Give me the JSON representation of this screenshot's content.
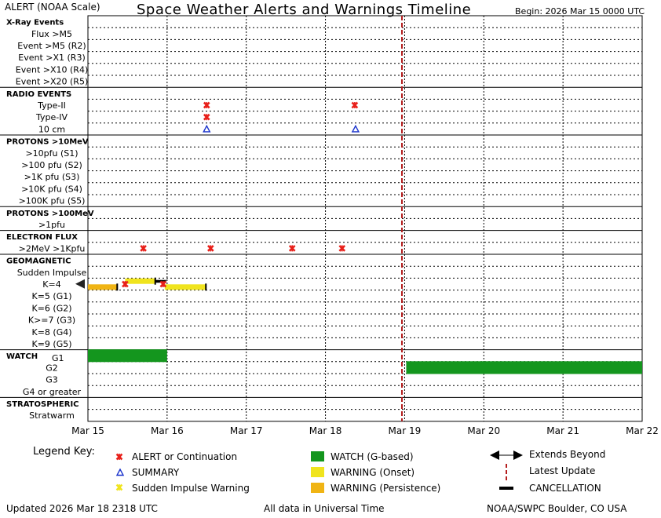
{
  "header": {
    "scale_label": "ALERT (NOAA Scale)",
    "title": "Space Weather Alerts and Warnings Timeline",
    "begin": "Begin: 2026 Mar 15 0000 UTC"
  },
  "footer": {
    "updated": "Updated 2026 Mar 18 2318 UTC",
    "note": "All data in Universal Time",
    "source": "NOAA/SWPC Boulder, CO USA"
  },
  "legend": {
    "title": "Legend Key:",
    "alert": "ALERT or Continuation",
    "summary": "SUMMARY",
    "sudden": "Sudden Impulse Warning",
    "watch": "WATCH (G-based)",
    "warning_onset": "WARNING (Onset)",
    "warning_persist": "WARNING (Persistence)",
    "extends": "Extends Beyond",
    "latest": "Latest Update",
    "cancel": "CANCELLATION"
  },
  "colors": {
    "alert": "#e8201a",
    "summary": "#1a33cc",
    "watch": "#14961e",
    "warning_onset": "#f0e41e",
    "warning_persist": "#f0b414",
    "latest_update": "#b41e1e",
    "grid": "#000000"
  },
  "chart_data": {
    "type": "timeline",
    "x_tick_labels": [
      "Mar 15",
      "Mar 16",
      "Mar 17",
      "Mar 18",
      "Mar 19",
      "Mar 20",
      "Mar 21",
      "Mar 22"
    ],
    "x_range_days": [
      0,
      7
    ],
    "latest_update_day": 3.966,
    "rows": [
      {
        "label": "X-Ray Events",
        "section": true
      },
      {
        "label": "Flux >M5"
      },
      {
        "label": "Event >M5 (R2)"
      },
      {
        "label": "Event >X1 (R3)"
      },
      {
        "label": "Event >X10 (R4)"
      },
      {
        "label": "Event >X20 (R5)"
      },
      {
        "label": "RADIO EVENTS",
        "section": true
      },
      {
        "label": "Type-II"
      },
      {
        "label": "Type-IV"
      },
      {
        "label": "10 cm"
      },
      {
        "label": "PROTONS >10MeV",
        "section": true
      },
      {
        "label": ">10pfu (S1)"
      },
      {
        "label": ">100 pfu (S2)"
      },
      {
        "label": ">1K pfu (S3)"
      },
      {
        "label": ">10K pfu (S4)"
      },
      {
        "label": ">100K pfu (S5)"
      },
      {
        "label": "PROTONS >100MeV",
        "section": true
      },
      {
        "label": ">1pfu"
      },
      {
        "label": "ELECTRON FLUX",
        "section": true
      },
      {
        "label": ">2MeV >1Kpfu"
      },
      {
        "label": "GEOMAGNETIC",
        "section": true
      },
      {
        "label": "Sudden Impulse"
      },
      {
        "label": "K=4"
      },
      {
        "label": "K=5 (G1)"
      },
      {
        "label": "K=6 (G2)"
      },
      {
        "label": "K>=7 (G3)"
      },
      {
        "label": "K=8 (G4)"
      },
      {
        "label": "K=9 (G5)"
      },
      {
        "label": "WATCH",
        "section": true,
        "inline": "G1"
      },
      {
        "label": "G2"
      },
      {
        "label": "G3"
      },
      {
        "label": "G4 or greater"
      },
      {
        "label": "STRATOSPHERIC",
        "section": true
      },
      {
        "label": "Stratwarm"
      }
    ],
    "bars": [
      {
        "row": 22,
        "type": "warning_persist",
        "start": -0.05,
        "end": 0.37,
        "offset": 0.25,
        "extends_left": true
      },
      {
        "row": 22,
        "type": "warning_onset",
        "start": 0.47,
        "end": 0.85,
        "offset": -0.25
      },
      {
        "row": 22,
        "type": "warning_onset",
        "start": 0.97,
        "end": 1.49,
        "offset": 0.25
      },
      {
        "row": 28,
        "type": "watch",
        "start": 0.0,
        "end": 1.0
      },
      {
        "row": 29,
        "type": "watch",
        "start": 4.02,
        "end": 7.0
      }
    ],
    "cancellations": [
      {
        "row": 22,
        "day": 0.85,
        "offset": -0.25
      }
    ],
    "alerts": [
      {
        "row": 7,
        "day": 1.5
      },
      {
        "row": 7,
        "day": 3.37
      },
      {
        "row": 8,
        "day": 1.5
      },
      {
        "row": 19,
        "day": 0.7
      },
      {
        "row": 19,
        "day": 1.55
      },
      {
        "row": 19,
        "day": 2.58
      },
      {
        "row": 19,
        "day": 3.21
      },
      {
        "row": 22,
        "day": 0.47
      },
      {
        "row": 22,
        "day": 0.95
      }
    ],
    "summaries": [
      {
        "row": 9,
        "day": 1.5
      },
      {
        "row": 9,
        "day": 3.38
      }
    ]
  }
}
